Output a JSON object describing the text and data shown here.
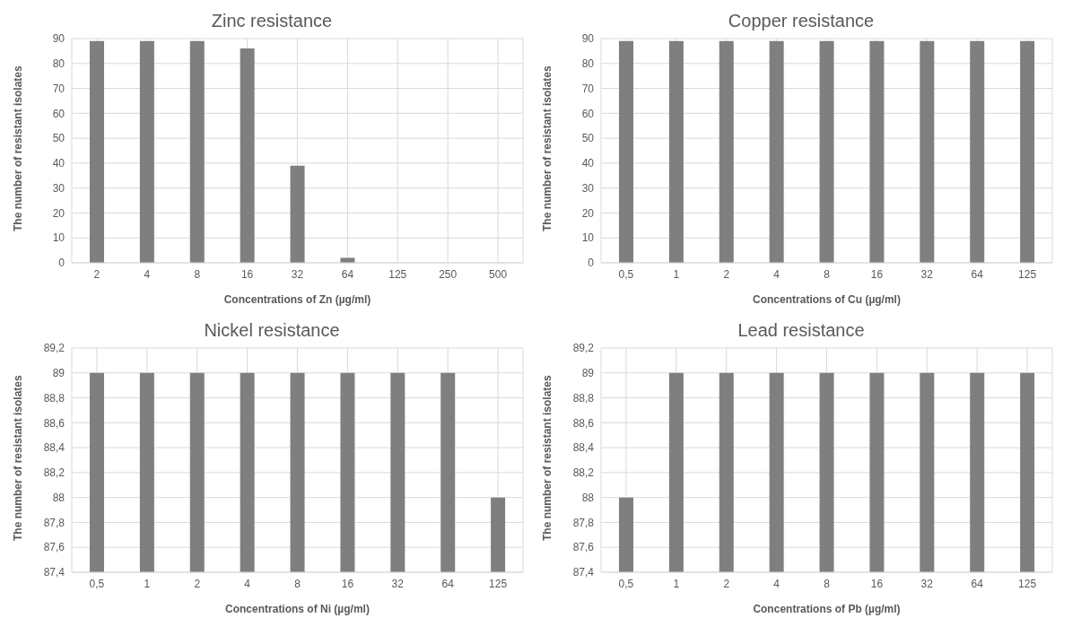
{
  "chart_data": [
    {
      "type": "bar",
      "title": "Zinc resistance",
      "xlabel": "Concentrations of Zn (µg/ml)",
      "ylabel": "The number of resistant isolates",
      "categories": [
        "2",
        "4",
        "8",
        "16",
        "32",
        "64",
        "125",
        "250",
        "500"
      ],
      "values": [
        89,
        89,
        89,
        86,
        39,
        2,
        0,
        0,
        0
      ],
      "color": "#7f7f7f",
      "ylim": [
        0,
        90
      ],
      "yticks": [
        0,
        10,
        20,
        30,
        40,
        50,
        60,
        70,
        80,
        90
      ],
      "grid": true
    },
    {
      "type": "bar",
      "title": "Copper resistance",
      "xlabel": "Concentrations of Cu (µg/ml)",
      "ylabel": "The number of resistant isolates",
      "categories": [
        "0,5",
        "1",
        "2",
        "4",
        "8",
        "16",
        "32",
        "64",
        "125"
      ],
      "values": [
        89,
        89,
        89,
        89,
        89,
        89,
        89,
        89,
        89
      ],
      "color": "#7f7f7f",
      "ylim": [
        0,
        90
      ],
      "yticks": [
        0,
        10,
        20,
        30,
        40,
        50,
        60,
        70,
        80,
        90
      ],
      "grid": true
    },
    {
      "type": "bar",
      "title": "Nickel resistance",
      "xlabel": "Concentrations of Ni (µg/ml)",
      "ylabel": "The number of resistant isolates",
      "categories": [
        "0,5",
        "1",
        "2",
        "4",
        "8",
        "16",
        "32",
        "64",
        "125"
      ],
      "values": [
        89,
        89,
        89,
        89,
        89,
        89,
        89,
        89,
        88
      ],
      "color": "#7f7f7f",
      "ylim": [
        87.4,
        89.2
      ],
      "yticks": [
        {
          "value": 87.4,
          "label": "87,4"
        },
        {
          "value": 87.6,
          "label": "87,6"
        },
        {
          "value": 87.8,
          "label": "87,8"
        },
        88,
        {
          "value": 88.2,
          "label": "88,2"
        },
        {
          "value": 88.4,
          "label": "88,4"
        },
        {
          "value": 88.6,
          "label": "88,6"
        },
        {
          "value": 88.8,
          "label": "88,8"
        },
        89,
        {
          "value": 89.2,
          "label": "89,2"
        }
      ],
      "grid": true
    },
    {
      "type": "bar",
      "title": "Lead resistance",
      "xlabel": "Concentrations of Pb (µg/ml)",
      "ylabel": "The number of resistant isolates",
      "categories": [
        "0,5",
        "1",
        "2",
        "4",
        "8",
        "16",
        "32",
        "64",
        "125"
      ],
      "values": [
        88,
        89,
        89,
        89,
        89,
        89,
        89,
        89,
        89
      ],
      "color": "#7f7f7f",
      "ylim": [
        87.4,
        89.2
      ],
      "yticks": [
        {
          "value": 87.4,
          "label": "87,4"
        },
        {
          "value": 87.6,
          "label": "87,6"
        },
        {
          "value": 87.8,
          "label": "87,8"
        },
        88,
        {
          "value": 88.2,
          "label": "88,2"
        },
        {
          "value": 88.4,
          "label": "88,4"
        },
        {
          "value": 88.6,
          "label": "88,6"
        },
        {
          "value": 88.8,
          "label": "88,8"
        },
        89,
        {
          "value": 89.2,
          "label": "89,2"
        }
      ],
      "grid": true
    }
  ]
}
